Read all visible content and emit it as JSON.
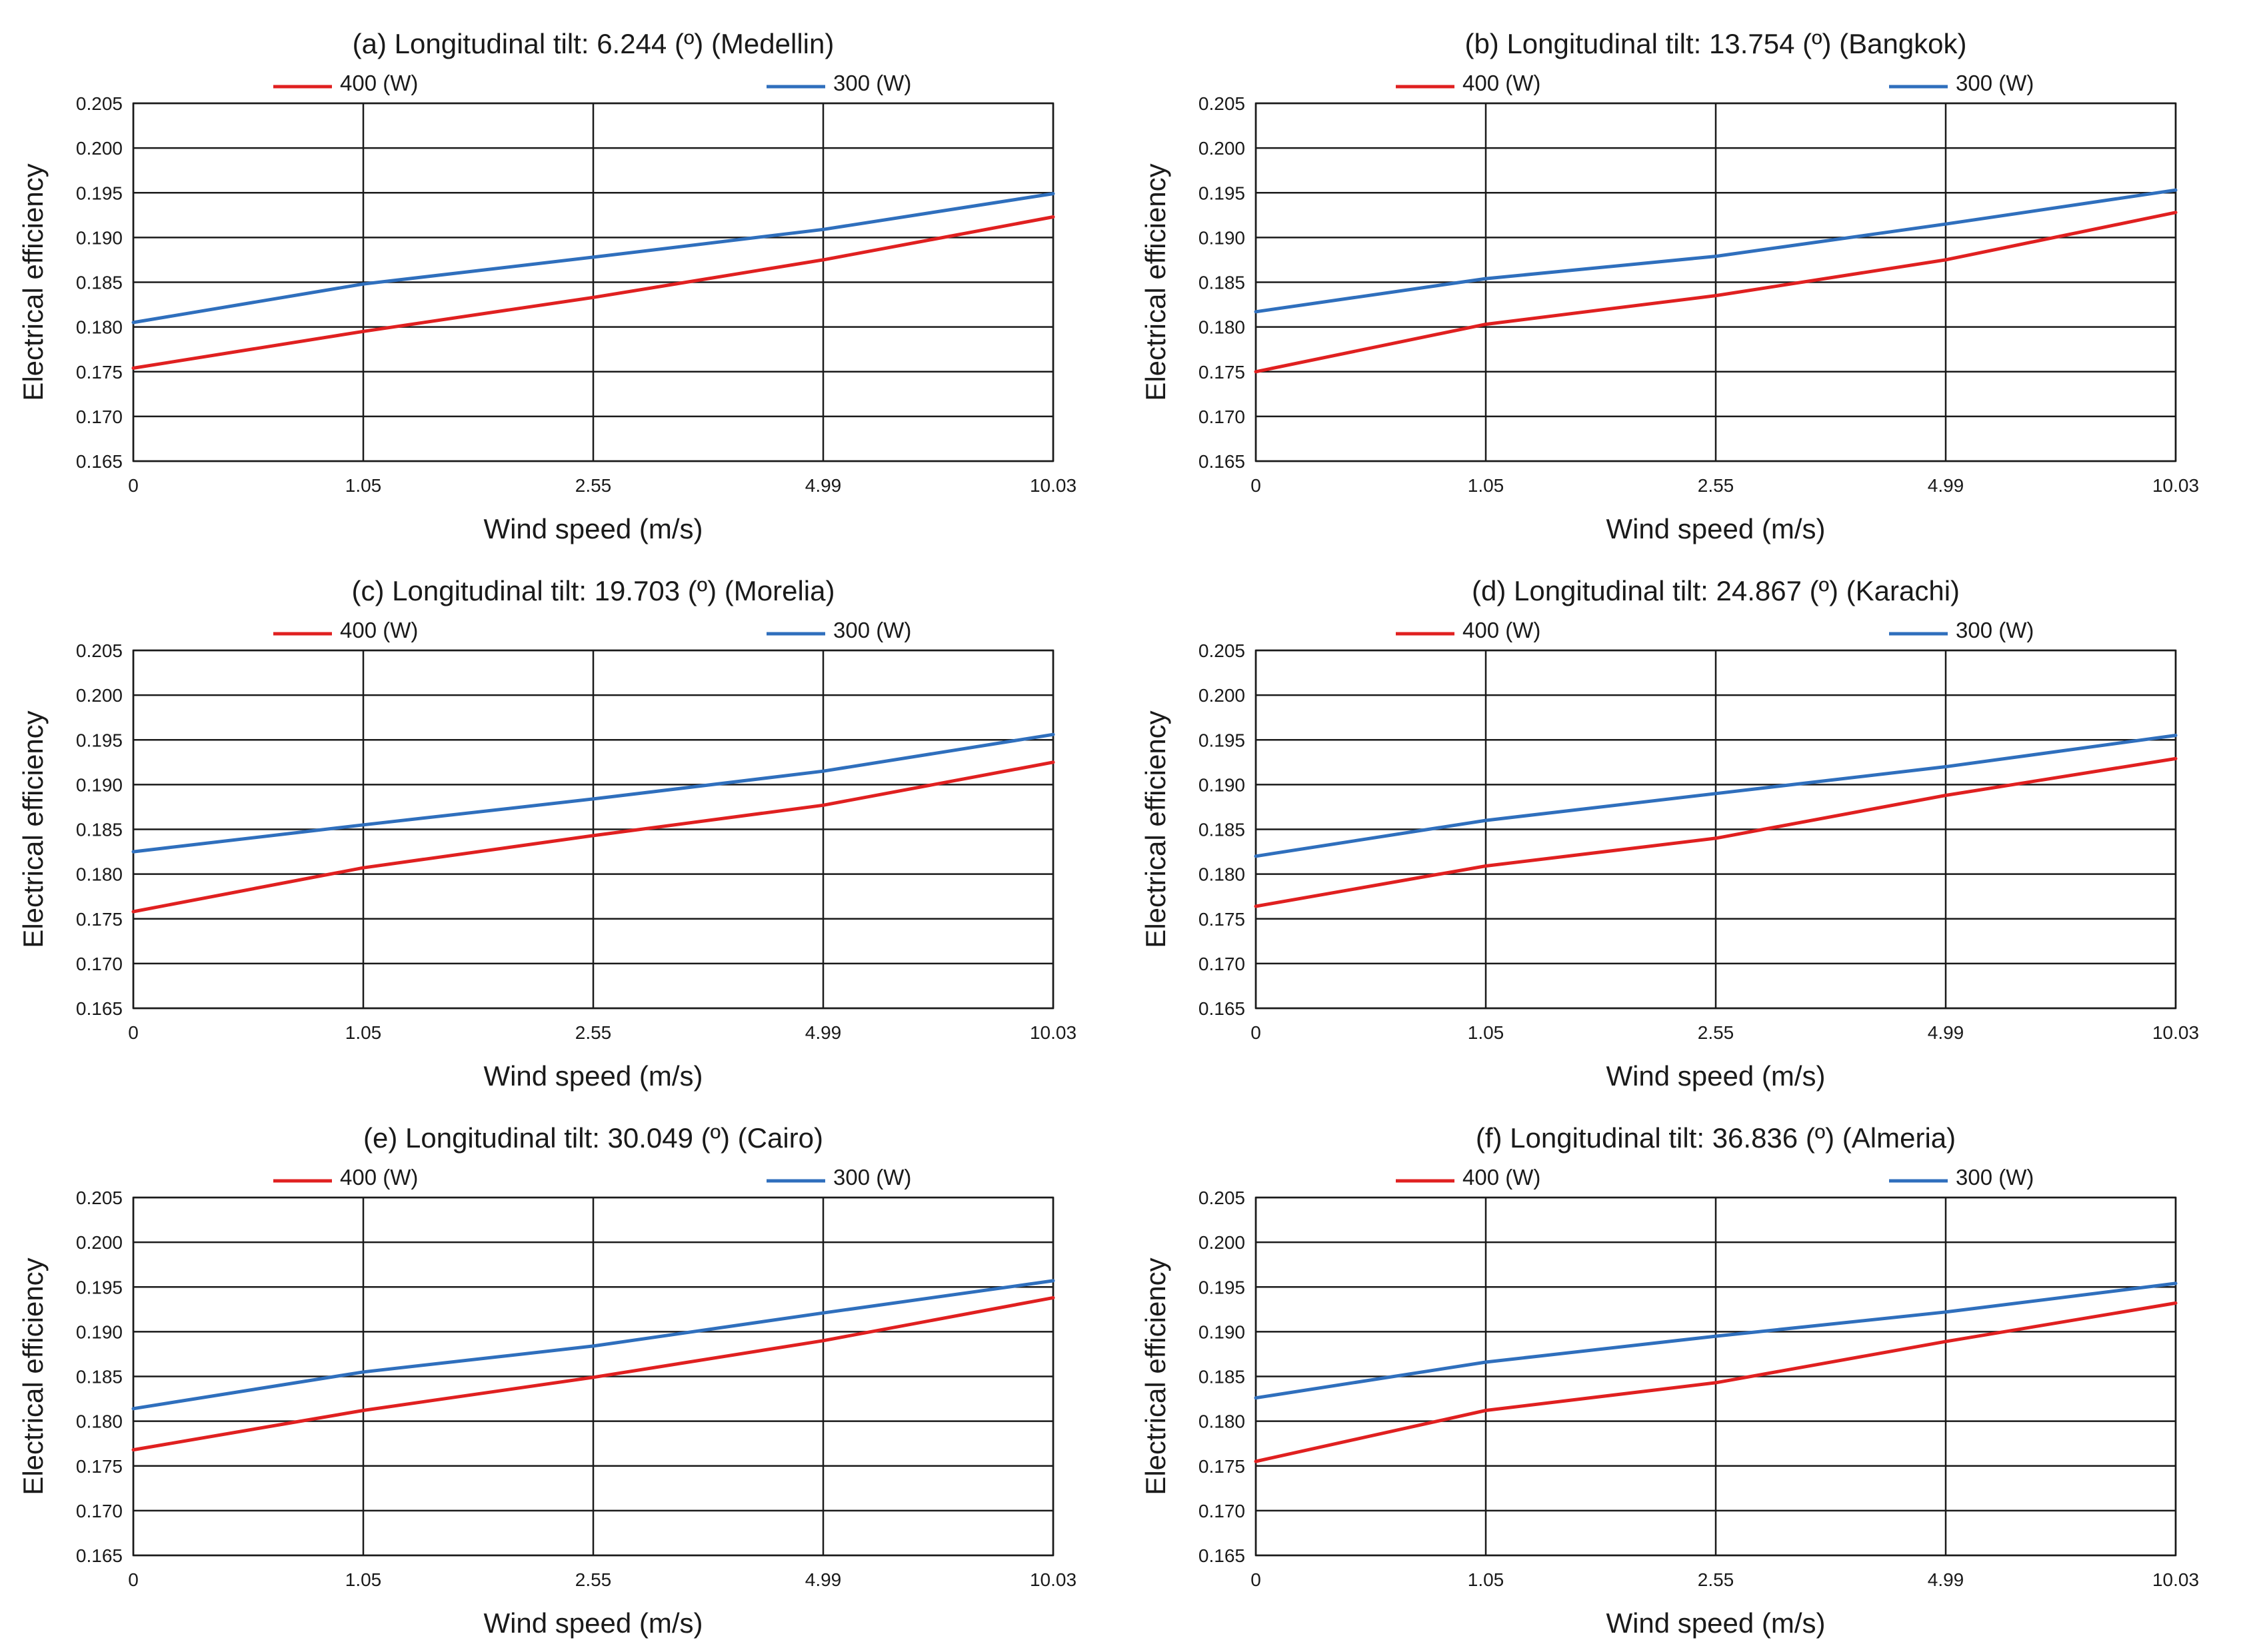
{
  "colors": {
    "series_400": "#e02020",
    "series_300": "#2f6fbd"
  },
  "chart_data": [
    {
      "type": "line",
      "title": "(a) Longitudinal tilt: 6.244 (º) (Medellin)",
      "xlabel": "Wind speed (m/s)",
      "ylabel": "Electrical efficiency",
      "categories": [
        "0",
        "1.05",
        "2.55",
        "4.99",
        "10.03"
      ],
      "yticks": [
        "0.165",
        "0.170",
        "0.175",
        "0.180",
        "0.185",
        "0.190",
        "0.195",
        "0.200",
        "0.205"
      ],
      "ylim": [
        0.165,
        0.205
      ],
      "legend_position": "top",
      "series": [
        {
          "name": "400 (W)",
          "values": [
            0.1754,
            0.1795,
            0.1833,
            0.1875,
            0.1923
          ]
        },
        {
          "name": "300 (W)",
          "values": [
            0.1805,
            0.1848,
            0.1878,
            0.1909,
            0.1949
          ]
        }
      ]
    },
    {
      "type": "line",
      "title": "(b) Longitudinal tilt: 13.754 (º) (Bangkok)",
      "xlabel": "Wind speed (m/s)",
      "ylabel": "Electrical efficiency",
      "categories": [
        "0",
        "1.05",
        "2.55",
        "4.99",
        "10.03"
      ],
      "yticks": [
        "0.165",
        "0.170",
        "0.175",
        "0.180",
        "0.185",
        "0.190",
        "0.195",
        "0.200",
        "0.205"
      ],
      "ylim": [
        0.165,
        0.205
      ],
      "legend_position": "top",
      "series": [
        {
          "name": "400 (W)",
          "values": [
            0.175,
            0.1803,
            0.1835,
            0.1875,
            0.1928
          ]
        },
        {
          "name": "300 (W)",
          "values": [
            0.1817,
            0.1854,
            0.1879,
            0.1915,
            0.1953
          ]
        }
      ]
    },
    {
      "type": "line",
      "title": "(c) Longitudinal tilt: 19.703 (º) (Morelia)",
      "xlabel": "Wind speed (m/s)",
      "ylabel": "Electrical efficiency",
      "categories": [
        "0",
        "1.05",
        "2.55",
        "4.99",
        "10.03"
      ],
      "yticks": [
        "0.165",
        "0.170",
        "0.175",
        "0.180",
        "0.185",
        "0.190",
        "0.195",
        "0.200",
        "0.205"
      ],
      "ylim": [
        0.165,
        0.205
      ],
      "legend_position": "top",
      "series": [
        {
          "name": "400 (W)",
          "values": [
            0.1758,
            0.1807,
            0.1843,
            0.1877,
            0.1925
          ]
        },
        {
          "name": "300 (W)",
          "values": [
            0.1825,
            0.1855,
            0.1884,
            0.1915,
            0.1956
          ]
        }
      ]
    },
    {
      "type": "line",
      "title": "(d) Longitudinal tilt: 24.867 (º) (Karachi)",
      "xlabel": "Wind speed (m/s)",
      "ylabel": "Electrical efficiency",
      "categories": [
        "0",
        "1.05",
        "2.55",
        "4.99",
        "10.03"
      ],
      "yticks": [
        "0.165",
        "0.170",
        "0.175",
        "0.180",
        "0.185",
        "0.190",
        "0.195",
        "0.200",
        "0.205"
      ],
      "ylim": [
        0.165,
        0.205
      ],
      "legend_position": "top",
      "series": [
        {
          "name": "400 (W)",
          "values": [
            0.1764,
            0.1809,
            0.184,
            0.1888,
            0.1929
          ]
        },
        {
          "name": "300 (W)",
          "values": [
            0.182,
            0.186,
            0.189,
            0.192,
            0.1955
          ]
        }
      ]
    },
    {
      "type": "line",
      "title": "(e) Longitudinal tilt: 30.049 (º) (Cairo)",
      "xlabel": "Wind speed (m/s)",
      "ylabel": "Electrical efficiency",
      "categories": [
        "0",
        "1.05",
        "2.55",
        "4.99",
        "10.03"
      ],
      "yticks": [
        "0.165",
        "0.170",
        "0.175",
        "0.180",
        "0.185",
        "0.190",
        "0.195",
        "0.200",
        "0.205"
      ],
      "ylim": [
        0.165,
        0.205
      ],
      "legend_position": "top",
      "series": [
        {
          "name": "400 (W)",
          "values": [
            0.1768,
            0.1812,
            0.1849,
            0.189,
            0.1938
          ]
        },
        {
          "name": "300 (W)",
          "values": [
            0.1814,
            0.1855,
            0.1884,
            0.1921,
            0.1957
          ]
        }
      ]
    },
    {
      "type": "line",
      "title": "(f) Longitudinal tilt: 36.836 (º) (Almeria)",
      "xlabel": "Wind speed (m/s)",
      "ylabel": "Electrical efficiency",
      "categories": [
        "0",
        "1.05",
        "2.55",
        "4.99",
        "10.03"
      ],
      "yticks": [
        "0.165",
        "0.170",
        "0.175",
        "0.180",
        "0.185",
        "0.190",
        "0.195",
        "0.200",
        "0.205"
      ],
      "ylim": [
        0.165,
        0.205
      ],
      "legend_position": "top",
      "series": [
        {
          "name": "400 (W)",
          "values": [
            0.1755,
            0.1812,
            0.1843,
            0.1889,
            0.1932
          ]
        },
        {
          "name": "300 (W)",
          "values": [
            0.1826,
            0.1866,
            0.1895,
            0.1922,
            0.1954
          ]
        }
      ]
    }
  ]
}
